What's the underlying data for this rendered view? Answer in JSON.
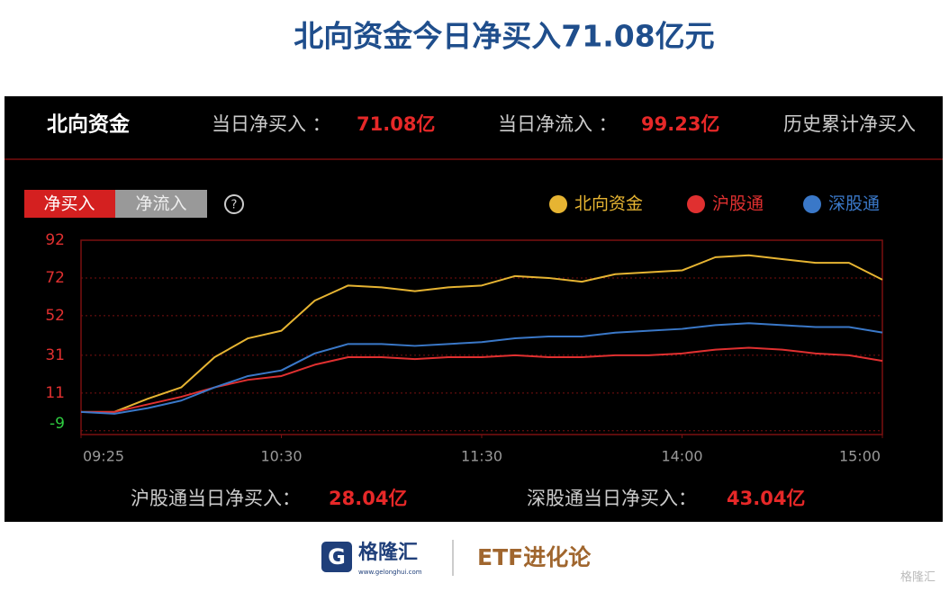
{
  "title": "北向资金今日净买入71.08亿元",
  "header": {
    "name": "北向资金",
    "buy_label": "当日净买入 ：",
    "buy_value": "71.08亿",
    "flow_label": "当日净流入 ：",
    "flow_value": "99.23亿",
    "history_label": "历史累计净买入"
  },
  "tabs": [
    "净买入",
    "净流入"
  ],
  "help": "?",
  "summary": {
    "sh_label": "沪股通当日净买入：",
    "sh_value": "28.04亿",
    "sz_label": "深股通当日净买入：",
    "sz_value": "43.04亿"
  },
  "footer": {
    "brand": "格隆汇",
    "url": "www.gelonghui.com",
    "column": "ETF进化论",
    "watermark": "格隆汇"
  },
  "chart_data": {
    "type": "line",
    "x": [
      0,
      10,
      20,
      30,
      40,
      50,
      60,
      70,
      80,
      90,
      100,
      110,
      120,
      130,
      140,
      150,
      160,
      170,
      180,
      190,
      200,
      210,
      220,
      230,
      240
    ],
    "xlim": [
      0,
      240
    ],
    "xticks": [
      {
        "value": 0,
        "label": "09:25"
      },
      {
        "value": 60,
        "label": "10:30"
      },
      {
        "value": 120,
        "label": "11:30"
      },
      {
        "value": 180,
        "label": "14:00"
      },
      {
        "value": 240,
        "label": "15:00"
      }
    ],
    "ylim": [
      -11,
      92
    ],
    "yticks": [
      -9,
      11,
      31,
      52,
      72,
      92
    ],
    "grid": true,
    "series": [
      {
        "name": "北向资金",
        "color": "#e6b432",
        "values": [
          1,
          1,
          8,
          14,
          30,
          40,
          44,
          60,
          68,
          67,
          65,
          67,
          68,
          73,
          72,
          70,
          74,
          75,
          76,
          83,
          84,
          82,
          80,
          80,
          71.08
        ]
      },
      {
        "name": "沪股通",
        "color": "#e03030",
        "values": [
          1,
          1,
          5,
          9,
          14,
          18,
          20,
          26,
          30,
          30,
          29,
          30,
          30,
          31,
          30,
          30,
          31,
          31,
          32,
          34,
          35,
          34,
          32,
          31,
          28.04
        ]
      },
      {
        "name": "深股通",
        "color": "#3a78c8",
        "values": [
          1,
          0,
          3,
          7,
          14,
          20,
          23,
          32,
          37,
          37,
          36,
          37,
          38,
          40,
          41,
          41,
          43,
          44,
          45,
          47,
          48,
          47,
          46,
          46,
          43.04
        ]
      }
    ]
  }
}
